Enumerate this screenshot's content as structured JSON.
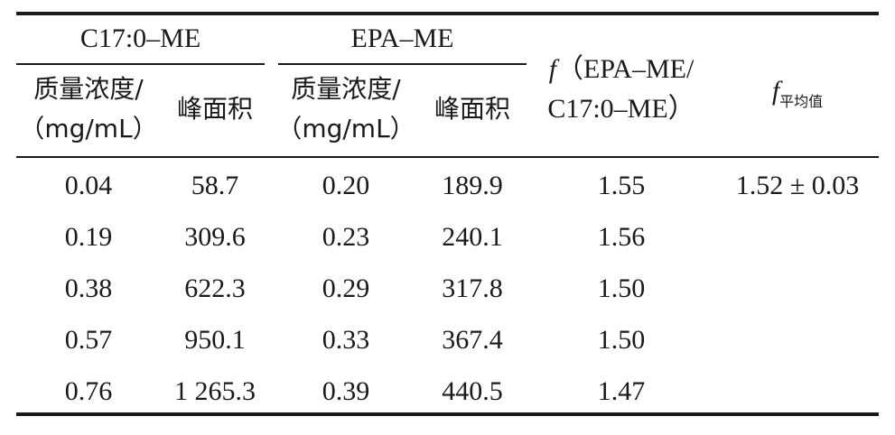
{
  "table": {
    "group_headers": {
      "c17": "C17:0–ME",
      "epa": "EPA–ME"
    },
    "sub_headers": {
      "conc_line1": "质量浓度/",
      "conc_line2": "（mg/mL）",
      "area": "峰面积"
    },
    "f_header": {
      "symbol": "f",
      "line1": "（EPA–ME/",
      "line2": "C17:0–ME）"
    },
    "favg_header": {
      "symbol": "f",
      "subscript": "平均值"
    },
    "rows": [
      {
        "c17_conc": "0.04",
        "c17_area": "58.7",
        "epa_conc": "0.20",
        "epa_area": "189.9",
        "f": "1.55"
      },
      {
        "c17_conc": "0.19",
        "c17_area": "309.6",
        "epa_conc": "0.23",
        "epa_area": "240.1",
        "f": "1.56"
      },
      {
        "c17_conc": "0.38",
        "c17_area": "622.3",
        "epa_conc": "0.29",
        "epa_area": "317.8",
        "f": "1.50"
      },
      {
        "c17_conc": "0.57",
        "c17_area": "950.1",
        "epa_conc": "0.33",
        "epa_area": "367.4",
        "f": "1.50"
      },
      {
        "c17_conc": "0.76",
        "c17_area": "1 265.3",
        "epa_conc": "0.39",
        "epa_area": "440.5",
        "f": "1.47"
      }
    ],
    "favg_value": "1.52 ± 0.03"
  }
}
